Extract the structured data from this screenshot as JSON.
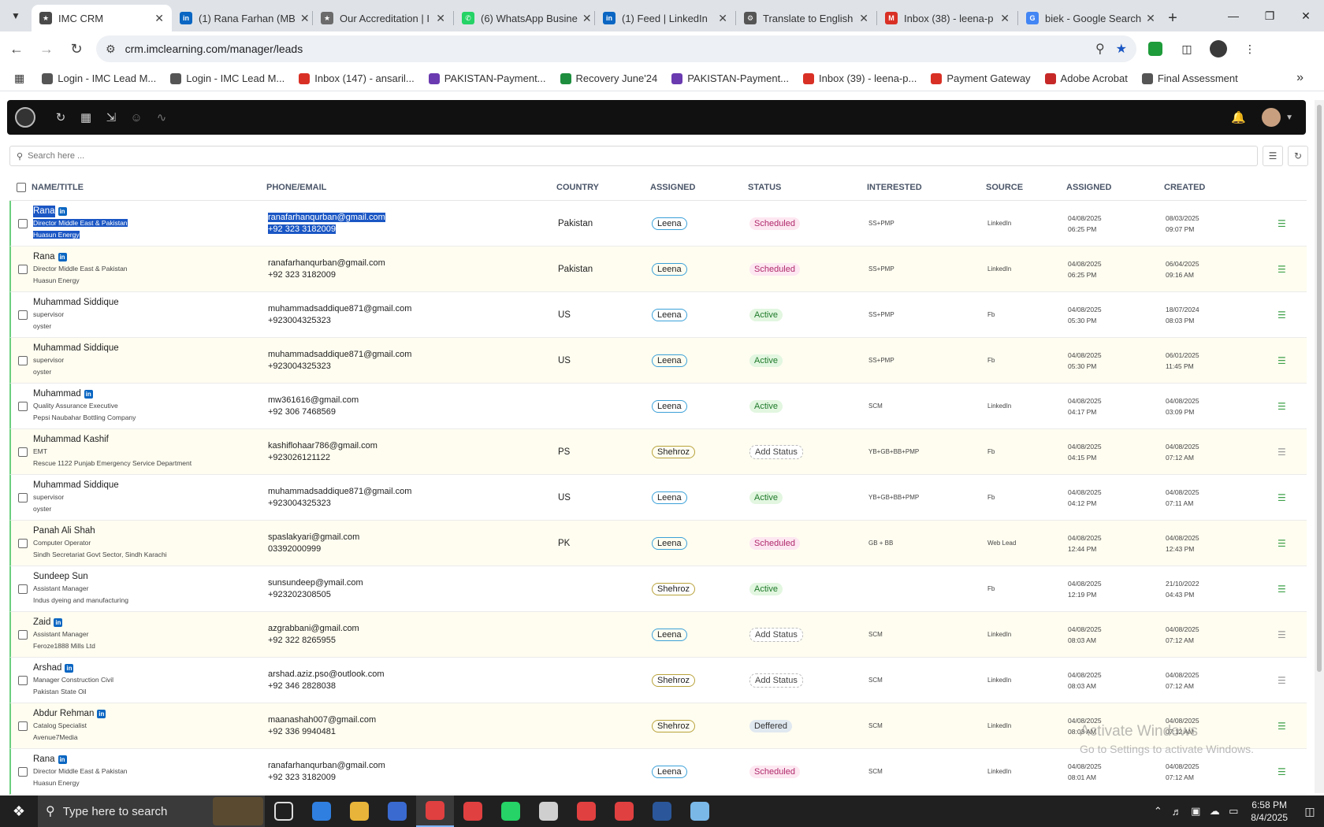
{
  "browser": {
    "tabs": [
      {
        "title": "IMC CRM",
        "color": "#4a4a4a",
        "glyph": "★"
      },
      {
        "title": "(1) Rana Farhan (MB",
        "color": "#0a66c2",
        "glyph": "in"
      },
      {
        "title": "Our Accreditation | I",
        "color": "#6b6b6b",
        "glyph": "★"
      },
      {
        "title": "(6) WhatsApp Busine",
        "color": "#25d366",
        "glyph": "✆"
      },
      {
        "title": "(1) Feed | LinkedIn",
        "color": "#0a66c2",
        "glyph": "in"
      },
      {
        "title": "Translate to English",
        "color": "#555555",
        "glyph": "⚙"
      },
      {
        "title": "Inbox (38) - leena-p",
        "color": "#d93025",
        "glyph": "M"
      },
      {
        "title": "biek - Google Search",
        "color": "#4285f4",
        "glyph": "G"
      }
    ],
    "url": "crm.imclearning.com/manager/leads",
    "bookmarks": [
      {
        "label": "Login - IMC Lead M...",
        "color": "#555555"
      },
      {
        "label": "Login - IMC Lead M...",
        "color": "#555555"
      },
      {
        "label": "Inbox (147) - ansaril...",
        "color": "#d93025"
      },
      {
        "label": "PAKISTAN-Payment...",
        "color": "#6a3ab0"
      },
      {
        "label": "Recovery June'24",
        "color": "#1e8e3e"
      },
      {
        "label": "PAKISTAN-Payment...",
        "color": "#6a3ab0"
      },
      {
        "label": "Inbox (39) - leena-p...",
        "color": "#d93025"
      },
      {
        "label": "Payment Gateway",
        "color": "#d93025"
      },
      {
        "label": "Adobe Acrobat",
        "color": "#c62828"
      },
      {
        "label": "Final Assessment",
        "color": "#555555"
      }
    ]
  },
  "app": {
    "search_placeholder": "Search here ...",
    "columns": {
      "name": "NAME/TITLE",
      "phone": "PHONE/EMAIL",
      "country": "COUNTRY",
      "assigned": "ASSIGNED",
      "status": "STATUS",
      "interested": "INTERESTED",
      "source": "SOURCE",
      "assigned_date": "ASSIGNED",
      "created": "CREATED"
    },
    "rows": [
      {
        "name": "Rana",
        "linkedin": true,
        "title": "Director Middle East & Pakistan",
        "company": "Huasun Energy",
        "email": "ranafarhanqurban@gmail.com",
        "phone": "+92 323 3182009",
        "country": "Pakistan",
        "assigned": "Leena",
        "status": "Scheduled",
        "interested": "SS+PMP",
        "source": "LinkedIn",
        "assigned_date": "04/08/2025",
        "assigned_time": "06:25 PM",
        "created_date": "08/03/2025",
        "created_time": "09:07 PM"
      },
      {
        "name": "Rana",
        "linkedin": true,
        "title": "Director Middle East & Pakistan",
        "company": "Huasun Energy",
        "email": "ranafarhanqurban@gmail.com",
        "phone": "+92 323 3182009",
        "country": "Pakistan",
        "assigned": "Leena",
        "status": "Scheduled",
        "interested": "SS+PMP",
        "source": "LinkedIn",
        "assigned_date": "04/08/2025",
        "assigned_time": "06:25 PM",
        "created_date": "06/04/2025",
        "created_time": "09:16 AM"
      },
      {
        "name": "Muhammad Siddique",
        "linkedin": false,
        "title": "supervisor",
        "company": "oyster",
        "email": "muhammadsaddique871@gmail.com",
        "phone": "+923004325323",
        "country": "US",
        "assigned": "Leena",
        "status": "Active",
        "interested": "SS+PMP",
        "source": "Fb",
        "assigned_date": "04/08/2025",
        "assigned_time": "05:30 PM",
        "created_date": "18/07/2024",
        "created_time": "08:03 PM"
      },
      {
        "name": "Muhammad Siddique",
        "linkedin": false,
        "title": "supervisor",
        "company": "oyster",
        "email": "muhammadsaddique871@gmail.com",
        "phone": "+923004325323",
        "country": "US",
        "assigned": "Leena",
        "status": "Active",
        "interested": "SS+PMP",
        "source": "Fb",
        "assigned_date": "04/08/2025",
        "assigned_time": "05:30 PM",
        "created_date": "06/01/2025",
        "created_time": "11:45 PM"
      },
      {
        "name": "Muhammad",
        "linkedin": true,
        "title": "Quality Assurance Executive",
        "company": "Pepsi Naubahar Bottling Company",
        "email": "mw361616@gmail.com",
        "phone": "+92 306 7468569",
        "country": "",
        "assigned": "Leena",
        "status": "Active",
        "interested": "SCM",
        "source": "LinkedIn",
        "assigned_date": "04/08/2025",
        "assigned_time": "04:17 PM",
        "created_date": "04/08/2025",
        "created_time": "03:09 PM"
      },
      {
        "name": "Muhammad Kashif",
        "linkedin": false,
        "title": "EMT",
        "company": "Rescue 1122 Punjab Emergency Service Department",
        "email": "kashiflohaar786@gmail.com",
        "phone": "+923026121122",
        "country": "PS",
        "assigned": "Shehroz",
        "status": "Add Status",
        "interested": "YB+GB+BB+PMP",
        "source": "Fb",
        "assigned_date": "04/08/2025",
        "assigned_time": "04:15 PM",
        "created_date": "04/08/2025",
        "created_time": "07:12 AM"
      },
      {
        "name": "Muhammad Siddique",
        "linkedin": false,
        "title": "supervisor",
        "company": "oyster",
        "email": "muhammadsaddique871@gmail.com",
        "phone": "+923004325323",
        "country": "US",
        "assigned": "Leena",
        "status": "Active",
        "interested": "YB+GB+BB+PMP",
        "source": "Fb",
        "assigned_date": "04/08/2025",
        "assigned_time": "04:12 PM",
        "created_date": "04/08/2025",
        "created_time": "07:11 AM"
      },
      {
        "name": "Panah Ali Shah",
        "linkedin": false,
        "title": "Computer Operator",
        "company": "Sindh Secretariat Govt Sector, Sindh Karachi",
        "email": "spaslakyari@gmail.com",
        "phone": "03392000999",
        "country": "PK",
        "assigned": "Leena",
        "status": "Scheduled",
        "interested": "GB + BB",
        "source": "Web Lead",
        "assigned_date": "04/08/2025",
        "assigned_time": "12:44 PM",
        "created_date": "04/08/2025",
        "created_time": "12:43 PM"
      },
      {
        "name": "Sundeep Sun",
        "linkedin": false,
        "title": "Assistant Manager",
        "company": "Indus dyeing and manufacturing",
        "email": "sunsundeep@ymail.com",
        "phone": "+923202308505",
        "country": "",
        "assigned": "Shehroz",
        "status": "Active",
        "interested": "",
        "source": "Fb",
        "assigned_date": "04/08/2025",
        "assigned_time": "12:19 PM",
        "created_date": "21/10/2022",
        "created_time": "04:43 PM"
      },
      {
        "name": "Zaid",
        "linkedin": true,
        "title": "Assistant Manager",
        "company": "Feroze1888 Mills Ltd",
        "email": "azgrabbani@gmail.com",
        "phone": "+92 322 8265955",
        "country": "",
        "assigned": "Leena",
        "status": "Add Status",
        "interested": "SCM",
        "source": "LinkedIn",
        "assigned_date": "04/08/2025",
        "assigned_time": "08:03 AM",
        "created_date": "04/08/2025",
        "created_time": "07:12 AM"
      },
      {
        "name": "Arshad",
        "linkedin": true,
        "title": "Manager Construction Civil",
        "company": "Pakistan State Oil",
        "email": "arshad.aziz.pso@outlook.com",
        "phone": "+92 346 2828038",
        "country": "",
        "assigned": "Shehroz",
        "status": "Add Status",
        "interested": "SCM",
        "source": "LinkedIn",
        "assigned_date": "04/08/2025",
        "assigned_time": "08:03 AM",
        "created_date": "04/08/2025",
        "created_time": "07:12 AM"
      },
      {
        "name": "Abdur Rehman",
        "linkedin": true,
        "title": "Catalog Specialist",
        "company": "Avenue7Media",
        "email": "maanashah007@gmail.com",
        "phone": "+92 336 9940481",
        "country": "",
        "assigned": "Shehroz",
        "status": "Deffered",
        "interested": "SCM",
        "source": "LinkedIn",
        "assigned_date": "04/08/2025",
        "assigned_time": "08:03 AM",
        "created_date": "04/08/2025",
        "created_time": "07:12 AM"
      },
      {
        "name": "Rana",
        "linkedin": true,
        "title": "Director Middle East & Pakistan",
        "company": "Huasun Energy",
        "email": "ranafarhanqurban@gmail.com",
        "phone": "+92 323 3182009",
        "country": "",
        "assigned": "Leena",
        "status": "Scheduled",
        "interested": "SCM",
        "source": "LinkedIn",
        "assigned_date": "04/08/2025",
        "assigned_time": "08:01 AM",
        "created_date": "04/08/2025",
        "created_time": "07:12 AM"
      }
    ]
  },
  "watermark": {
    "line1": "Activate Windows",
    "line2": "Go to Settings to activate Windows."
  },
  "taskbar": {
    "search_placeholder": "Type here to search",
    "time": "6:58 PM",
    "date": "8/4/2025",
    "apps": [
      "#4a4a4a",
      "#2f7fe0",
      "#e8b43a",
      "#3a6ad0",
      "#e04040",
      "#e04040",
      "#25d366",
      "#cfcfcf",
      "#e04040",
      "#e04040",
      "#2b579a",
      "#7ab8e8"
    ]
  }
}
